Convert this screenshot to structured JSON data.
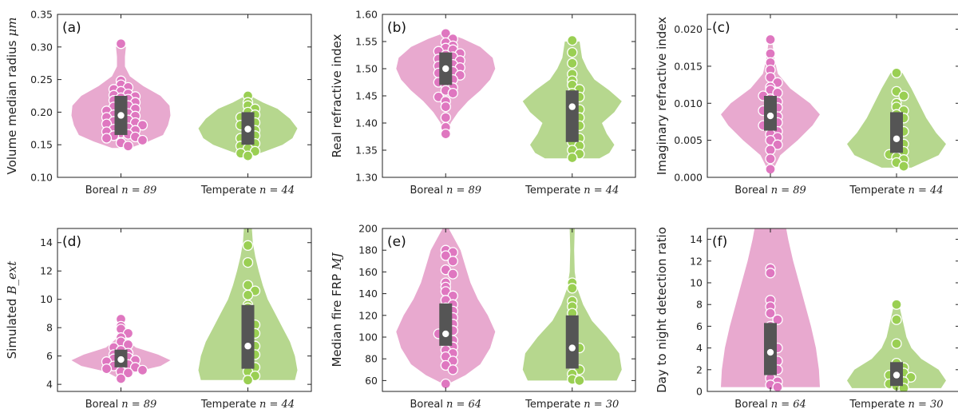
{
  "colors": {
    "boreal": "#e8a9cf",
    "boreal_point": "#df77c0",
    "temperate": "#b6d78e",
    "temperate_point": "#9acf53",
    "box": "#555555",
    "median": "#ffffff",
    "frame": "#222222"
  },
  "chart_data": [
    {
      "type": "violin",
      "panel_label": "(a)",
      "ylabel": "Volume median radius",
      "ylabel_unit": "μm",
      "ylim": [
        0.1,
        0.35
      ],
      "yticks": [
        "0.10",
        "0.15",
        "0.20",
        "0.25",
        "0.30",
        "0.35"
      ],
      "series": [
        {
          "name": "Boreal",
          "n_label": "n = 89",
          "median": 0.195,
          "q1": 0.165,
          "q3": 0.225,
          "points": [
            0.305,
            0.248,
            0.242,
            0.238,
            0.235,
            0.232,
            0.228,
            0.226,
            0.224,
            0.222,
            0.22,
            0.218,
            0.215,
            0.212,
            0.21,
            0.208,
            0.205,
            0.202,
            0.2,
            0.198,
            0.196,
            0.194,
            0.192,
            0.19,
            0.188,
            0.186,
            0.184,
            0.182,
            0.18,
            0.178,
            0.176,
            0.174,
            0.172,
            0.17,
            0.168,
            0.166,
            0.164,
            0.162,
            0.16,
            0.157,
            0.153,
            0.148
          ],
          "density": [
            [
              0.145,
              0.18
            ],
            [
              0.155,
              0.55
            ],
            [
              0.165,
              0.85
            ],
            [
              0.18,
              0.95
            ],
            [
              0.195,
              1.0
            ],
            [
              0.21,
              0.98
            ],
            [
              0.225,
              0.8
            ],
            [
              0.24,
              0.45
            ],
            [
              0.255,
              0.18
            ],
            [
              0.27,
              0.08
            ],
            [
              0.285,
              0.08
            ],
            [
              0.3,
              0.1
            ],
            [
              0.305,
              0.0
            ]
          ]
        },
        {
          "name": "Temperate",
          "n_label": "n = 44",
          "median": 0.174,
          "q1": 0.15,
          "q3": 0.2,
          "points": [
            0.225,
            0.215,
            0.21,
            0.205,
            0.2,
            0.196,
            0.192,
            0.188,
            0.184,
            0.18,
            0.176,
            0.172,
            0.168,
            0.164,
            0.16,
            0.156,
            0.152,
            0.148,
            0.144,
            0.14,
            0.137,
            0.133
          ],
          "density": [
            [
              0.133,
              0.08
            ],
            [
              0.14,
              0.35
            ],
            [
              0.15,
              0.7
            ],
            [
              0.16,
              0.9
            ],
            [
              0.175,
              1.0
            ],
            [
              0.19,
              0.85
            ],
            [
              0.205,
              0.6
            ],
            [
              0.215,
              0.3
            ],
            [
              0.225,
              0.05
            ]
          ]
        }
      ]
    },
    {
      "type": "violin",
      "panel_label": "(b)",
      "ylabel": "Real refractive index",
      "ylabel_unit": "",
      "ylim": [
        1.3,
        1.6
      ],
      "yticks": [
        "1.30",
        "1.35",
        "1.40",
        "1.45",
        "1.50",
        "1.55",
        "1.60"
      ],
      "series": [
        {
          "name": "Boreal",
          "n_label": "n = 89",
          "median": 1.5,
          "q1": 1.47,
          "q3": 1.53,
          "points": [
            1.565,
            1.555,
            1.548,
            1.542,
            1.538,
            1.535,
            1.532,
            1.528,
            1.525,
            1.522,
            1.518,
            1.515,
            1.512,
            1.508,
            1.505,
            1.502,
            1.498,
            1.495,
            1.492,
            1.488,
            1.485,
            1.48,
            1.475,
            1.47,
            1.465,
            1.46,
            1.455,
            1.448,
            1.44,
            1.43,
            1.41,
            1.392,
            1.38
          ],
          "density": [
            [
              1.38,
              0.05
            ],
            [
              1.4,
              0.1
            ],
            [
              1.42,
              0.25
            ],
            [
              1.44,
              0.45
            ],
            [
              1.46,
              0.7
            ],
            [
              1.48,
              0.9
            ],
            [
              1.5,
              1.0
            ],
            [
              1.52,
              0.95
            ],
            [
              1.54,
              0.7
            ],
            [
              1.555,
              0.35
            ],
            [
              1.565,
              0.05
            ]
          ]
        },
        {
          "name": "Temperate",
          "n_label": "n = 44",
          "median": 1.43,
          "q1": 1.365,
          "q3": 1.46,
          "points": [
            1.552,
            1.53,
            1.51,
            1.49,
            1.478,
            1.47,
            1.462,
            1.455,
            1.448,
            1.44,
            1.432,
            1.425,
            1.418,
            1.41,
            1.402,
            1.395,
            1.388,
            1.38,
            1.372,
            1.365,
            1.358,
            1.35,
            1.343,
            1.336
          ],
          "density": [
            [
              1.335,
              0.55
            ],
            [
              1.345,
              0.75
            ],
            [
              1.36,
              0.85
            ],
            [
              1.38,
              0.7
            ],
            [
              1.4,
              0.6
            ],
            [
              1.42,
              0.85
            ],
            [
              1.44,
              1.0
            ],
            [
              1.46,
              0.75
            ],
            [
              1.48,
              0.45
            ],
            [
              1.5,
              0.3
            ],
            [
              1.52,
              0.2
            ],
            [
              1.55,
              0.15
            ]
          ]
        }
      ]
    },
    {
      "type": "violin",
      "panel_label": "(c)",
      "ylabel": "Imaginary refractive index",
      "ylabel_unit": "",
      "ylim": [
        0.0,
        0.022
      ],
      "yticks": [
        "0.000",
        "0.005",
        "0.010",
        "0.015",
        "0.020"
      ],
      "series": [
        {
          "name": "Boreal",
          "n_label": "n = 89",
          "median": 0.0083,
          "q1": 0.0063,
          "q3": 0.011,
          "points": [
            0.0186,
            0.0167,
            0.0155,
            0.0145,
            0.0135,
            0.0128,
            0.0122,
            0.0118,
            0.0114,
            0.011,
            0.0106,
            0.0102,
            0.0098,
            0.0094,
            0.009,
            0.0086,
            0.0082,
            0.0078,
            0.0074,
            0.007,
            0.0066,
            0.0062,
            0.0058,
            0.0054,
            0.005,
            0.0044,
            0.0037,
            0.0025,
            0.0011
          ],
          "density": [
            [
              0.001,
              0.05
            ],
            [
              0.003,
              0.2
            ],
            [
              0.005,
              0.55
            ],
            [
              0.007,
              0.85
            ],
            [
              0.0085,
              1.0
            ],
            [
              0.01,
              0.8
            ],
            [
              0.012,
              0.4
            ],
            [
              0.014,
              0.15
            ],
            [
              0.016,
              0.08
            ],
            [
              0.0186,
              0.03
            ]
          ]
        },
        {
          "name": "Temperate",
          "n_label": "n = 44",
          "median": 0.0052,
          "q1": 0.0033,
          "q3": 0.0088,
          "points": [
            0.0141,
            0.0116,
            0.011,
            0.01,
            0.0095,
            0.009,
            0.0085,
            0.008,
            0.0074,
            0.0068,
            0.0062,
            0.0056,
            0.005,
            0.0045,
            0.004,
            0.0035,
            0.0031,
            0.0027,
            0.0024,
            0.002,
            0.0015
          ],
          "density": [
            [
              0.0013,
              0.3
            ],
            [
              0.003,
              0.85
            ],
            [
              0.0045,
              1.0
            ],
            [
              0.006,
              0.8
            ],
            [
              0.008,
              0.6
            ],
            [
              0.01,
              0.45
            ],
            [
              0.012,
              0.3
            ],
            [
              0.0141,
              0.12
            ]
          ]
        }
      ]
    },
    {
      "type": "violin",
      "panel_label": "(d)",
      "ylabel": "Simulated",
      "ylabel_unit": "B_ext",
      "ylim": [
        3.5,
        15
      ],
      "yticks": [
        "4",
        "6",
        "8",
        "10",
        "12",
        "14"
      ],
      "series": [
        {
          "name": "Boreal",
          "n_label": "n = 89",
          "median": 5.75,
          "q1": 5.2,
          "q3": 6.45,
          "points": [
            8.6,
            8.1,
            7.9,
            7.6,
            7.3,
            7.0,
            6.8,
            6.6,
            6.4,
            6.2,
            6.1,
            6.0,
            5.9,
            5.8,
            5.7,
            5.6,
            5.5,
            5.4,
            5.3,
            5.2,
            5.1,
            5.0,
            4.9,
            4.8,
            4.4
          ],
          "density": [
            [
              4.4,
              0.04
            ],
            [
              4.9,
              0.3
            ],
            [
              5.3,
              0.8
            ],
            [
              5.7,
              1.0
            ],
            [
              6.1,
              0.75
            ],
            [
              6.6,
              0.3
            ],
            [
              7.2,
              0.1
            ],
            [
              8.0,
              0.04
            ],
            [
              8.6,
              0.02
            ]
          ]
        },
        {
          "name": "Temperate",
          "n_label": "n = 44",
          "median": 6.7,
          "q1": 5.1,
          "q3": 9.6,
          "points": [
            13.8,
            12.6,
            11.0,
            10.6,
            10.3,
            9.6,
            9.4,
            8.8,
            8.5,
            8.2,
            7.9,
            7.6,
            7.3,
            7.0,
            6.7,
            6.4,
            6.1,
            5.8,
            5.5,
            5.2,
            4.9,
            4.6,
            4.3
          ],
          "density": [
            [
              4.3,
              0.95
            ],
            [
              5.0,
              1.0
            ],
            [
              6.0,
              0.95
            ],
            [
              7.0,
              0.85
            ],
            [
              8.0,
              0.7
            ],
            [
              9.0,
              0.55
            ],
            [
              10.0,
              0.4
            ],
            [
              11.0,
              0.3
            ],
            [
              12.0,
              0.22
            ],
            [
              13.0,
              0.15
            ],
            [
              14.0,
              0.1
            ],
            [
              15.0,
              0.08
            ]
          ]
        }
      ]
    },
    {
      "type": "violin",
      "panel_label": "(e)",
      "ylabel": "Median fire FRP",
      "ylabel_unit": "MJ",
      "ylim": [
        50,
        200
      ],
      "yticks": [
        "60",
        "80",
        "100",
        "120",
        "140",
        "160",
        "180",
        "200"
      ],
      "series": [
        {
          "name": "Boreal",
          "n_label": "n = 64",
          "median": 103,
          "q1": 92,
          "q3": 131,
          "points": [
            180,
            178,
            175,
            170,
            162,
            158,
            150,
            146,
            142,
            138,
            134,
            130,
            127,
            124,
            121,
            118,
            115,
            112,
            109,
            106,
            103,
            100,
            97,
            94,
            91,
            88,
            85,
            82,
            78,
            74,
            70,
            57
          ],
          "density": [
            [
              57,
              0.05
            ],
            [
              65,
              0.4
            ],
            [
              75,
              0.7
            ],
            [
              90,
              0.9
            ],
            [
              105,
              1.0
            ],
            [
              120,
              0.85
            ],
            [
              135,
              0.65
            ],
            [
              150,
              0.5
            ],
            [
              165,
              0.4
            ],
            [
              180,
              0.3
            ],
            [
              195,
              0.12
            ],
            [
              200,
              0.06
            ]
          ]
        },
        {
          "name": "Temperate",
          "n_label": "n = 30",
          "median": 90,
          "q1": 71,
          "q3": 120,
          "points": [
            150,
            145,
            133,
            128,
            122,
            115,
            108,
            100,
            95,
            90,
            85,
            80,
            75,
            70,
            66,
            61,
            60
          ],
          "density": [
            [
              60,
              0.9
            ],
            [
              70,
              1.0
            ],
            [
              85,
              0.95
            ],
            [
              100,
              0.7
            ],
            [
              115,
              0.4
            ],
            [
              130,
              0.22
            ],
            [
              145,
              0.1
            ],
            [
              160,
              0.05
            ],
            [
              180,
              0.04
            ],
            [
              200,
              0.05
            ]
          ]
        }
      ]
    },
    {
      "type": "violin",
      "panel_label": "(f)",
      "ylabel": "Day to night detection ratio",
      "ylabel_unit": "",
      "ylim": [
        0,
        15
      ],
      "yticks": [
        "0",
        "2",
        "4",
        "6",
        "8",
        "10",
        "12",
        "14"
      ],
      "series": [
        {
          "name": "Boreal",
          "n_label": "n = 64",
          "median": 3.6,
          "q1": 1.5,
          "q3": 6.3,
          "points": [
            11.3,
            10.9,
            8.4,
            7.8,
            7.2,
            6.6,
            6.0,
            5.5,
            5.0,
            4.5,
            4.0,
            3.6,
            3.2,
            2.8,
            2.4,
            2.0,
            1.6,
            1.2,
            0.9,
            0.6,
            0.4
          ],
          "density": [
            [
              0.4,
              1.0
            ],
            [
              2.0,
              0.98
            ],
            [
              4.0,
              0.92
            ],
            [
              6.0,
              0.82
            ],
            [
              8.0,
              0.7
            ],
            [
              10.0,
              0.58
            ],
            [
              12.0,
              0.46
            ],
            [
              14.0,
              0.36
            ],
            [
              15.0,
              0.32
            ]
          ]
        },
        {
          "name": "Temperate",
          "n_label": "n = 30",
          "median": 1.5,
          "q1": 0.5,
          "q3": 2.7,
          "points": [
            8.0,
            6.6,
            4.4,
            2.6,
            2.2,
            1.9,
            1.7,
            1.5,
            1.3,
            1.1,
            0.9,
            0.7,
            0.5,
            0.3
          ],
          "density": [
            [
              0.3,
              0.9
            ],
            [
              1.0,
              1.0
            ],
            [
              2.0,
              0.85
            ],
            [
              3.0,
              0.5
            ],
            [
              4.0,
              0.3
            ],
            [
              5.0,
              0.2
            ],
            [
              6.0,
              0.15
            ],
            [
              7.0,
              0.1
            ],
            [
              8.0,
              0.05
            ]
          ]
        }
      ]
    }
  ]
}
